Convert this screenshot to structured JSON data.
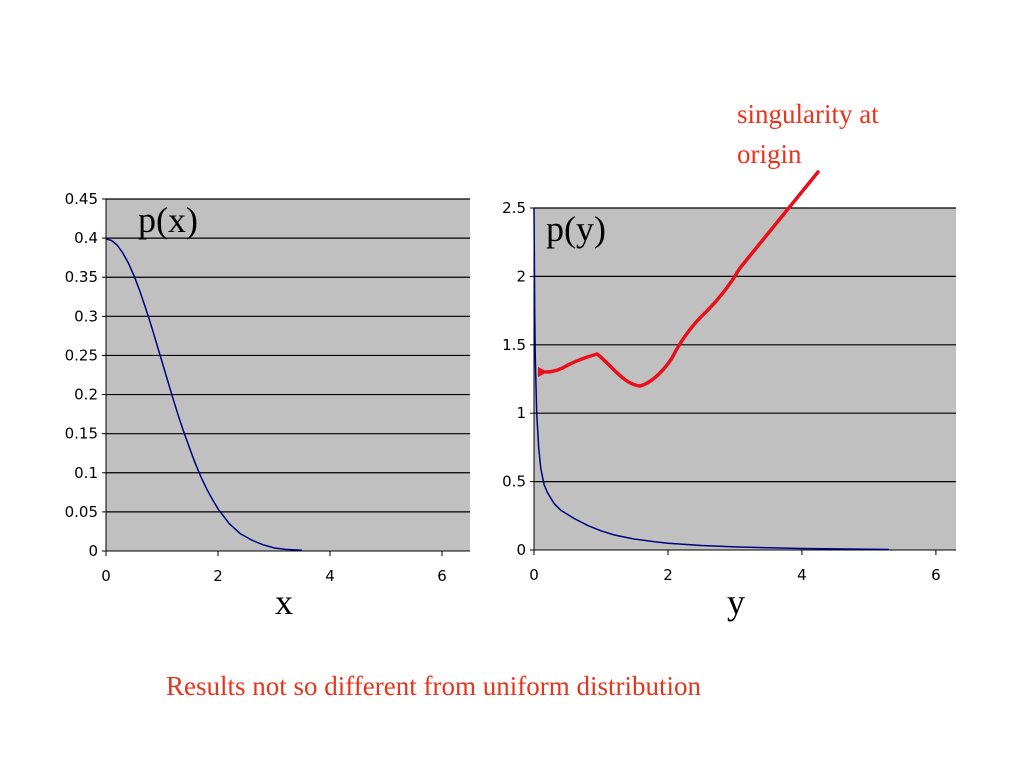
{
  "annotation": {
    "lines": [
      "singularity at",
      "origin"
    ],
    "color": "#e8341c",
    "arrow_color": "#e8101a"
  },
  "caption": "Results not so different from uniform distribution",
  "colors": {
    "plot_background": "#c0c0c0",
    "gridline": "#000000",
    "series": "#000080"
  },
  "chart_data": [
    {
      "type": "line",
      "title": "p(x)",
      "xlabel": "x",
      "ylabel": "",
      "xlim": [
        0,
        6.5
      ],
      "ylim": [
        0,
        0.45
      ],
      "x_ticks": [
        "0",
        "2",
        "4",
        "6"
      ],
      "y_ticks": [
        "0",
        "0.05",
        "0.1",
        "0.15",
        "0.2",
        "0.25",
        "0.3",
        "0.35",
        "0.4",
        "0.45"
      ],
      "grid": "horizontal",
      "series": [
        {
          "x": [
            0,
            0.1,
            0.2,
            0.3,
            0.4,
            0.5,
            0.6,
            0.7,
            0.8,
            0.9,
            1.0,
            1.1,
            1.2,
            1.3,
            1.4,
            1.5,
            1.6,
            1.7,
            1.8,
            1.9,
            2.0,
            2.2,
            2.4,
            2.6,
            2.8,
            3.0,
            3.2,
            3.5
          ],
          "y": [
            0.399,
            0.397,
            0.391,
            0.381,
            0.368,
            0.352,
            0.333,
            0.312,
            0.29,
            0.266,
            0.242,
            0.218,
            0.194,
            0.171,
            0.15,
            0.13,
            0.111,
            0.094,
            0.079,
            0.066,
            0.054,
            0.035,
            0.022,
            0.014,
            0.008,
            0.004,
            0.002,
            0.001
          ]
        }
      ]
    },
    {
      "type": "line",
      "title": "p(y)",
      "xlabel": "y",
      "ylabel": "",
      "xlim": [
        0,
        6.3
      ],
      "ylim": [
        0,
        2.5
      ],
      "x_ticks": [
        "0",
        "2",
        "4",
        "6"
      ],
      "y_ticks": [
        "0",
        "0.5",
        "1",
        "1.5",
        "2",
        "2.5"
      ],
      "grid": "horizontal",
      "series": [
        {
          "x": [
            0.0,
            0.005,
            0.01,
            0.02,
            0.04,
            0.07,
            0.1,
            0.15,
            0.2,
            0.3,
            0.4,
            0.5,
            0.6,
            0.8,
            1.0,
            1.2,
            1.5,
            1.8,
            2.0,
            2.5,
            3.0,
            3.5,
            4.0,
            4.5,
            5.0,
            5.3
          ],
          "y": [
            2.5,
            2.2,
            1.74,
            1.4,
            1.0,
            0.75,
            0.6,
            0.48,
            0.42,
            0.34,
            0.29,
            0.26,
            0.23,
            0.18,
            0.14,
            0.11,
            0.08,
            0.06,
            0.05,
            0.033,
            0.023,
            0.016,
            0.011,
            0.008,
            0.005,
            0.004
          ]
        }
      ]
    }
  ]
}
